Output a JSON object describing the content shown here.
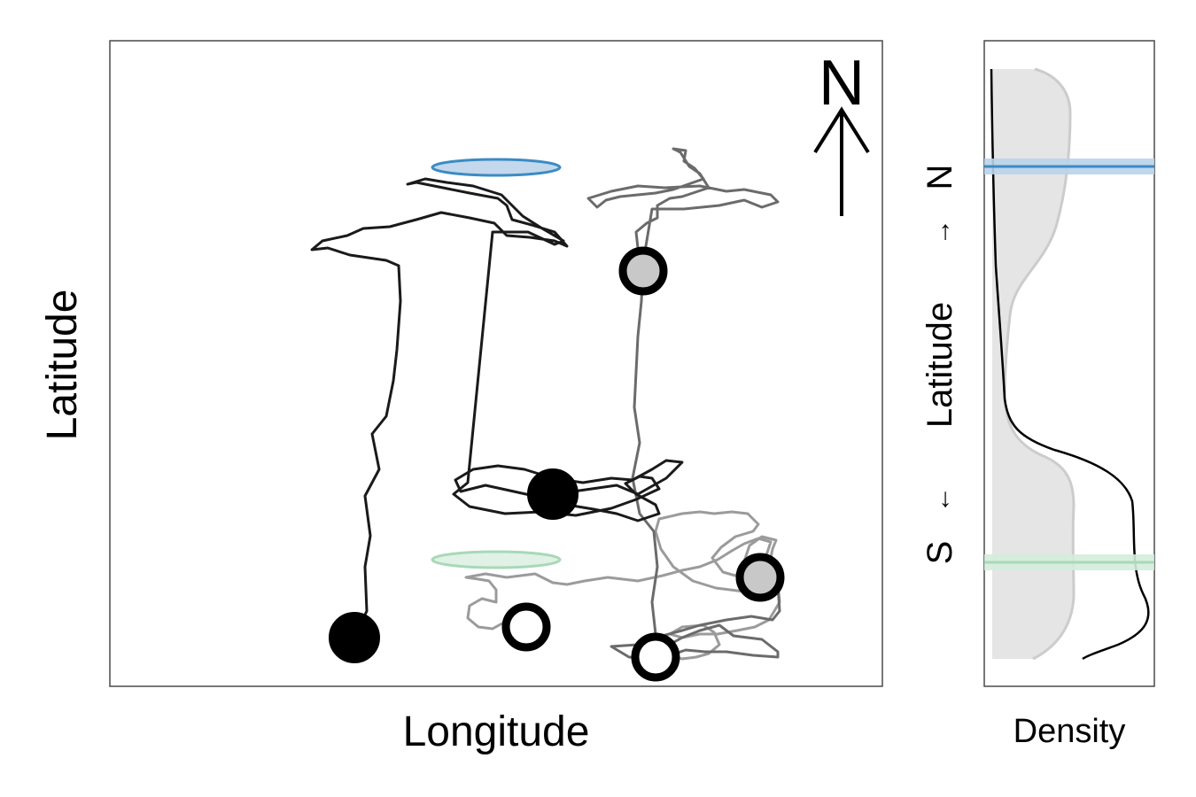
{
  "chart_data": [
    {
      "type": "line",
      "xlabel": "Longitude",
      "ylabel": "Latitude",
      "north_arrow_label": "N",
      "axis_ticks": "none",
      "grid": false,
      "legend": "none",
      "reference_ellipses": [
        {
          "name": "north",
          "color": "#3b8bc4",
          "fill": "#c3d8ec"
        },
        {
          "name": "south",
          "color": "#a9d8b8",
          "fill": "#e0f1e5"
        }
      ],
      "tracks": [
        {
          "color": "#1a1a1a",
          "start": "filled-black",
          "end": "filled-black",
          "points": [
            [
              400,
              720
            ],
            [
              414,
              690
            ],
            [
              412,
              640
            ],
            [
              418,
              605
            ],
            [
              412,
              560
            ],
            [
              428,
              530
            ],
            [
              420,
              490
            ],
            [
              436,
              470
            ],
            [
              444,
              430
            ],
            [
              448,
              395
            ],
            [
              452,
              340
            ],
            [
              450,
              300
            ],
            [
              436,
              294
            ],
            [
              395,
              288
            ],
            [
              370,
              280
            ],
            [
              352,
              282
            ],
            [
              364,
              272
            ],
            [
              392,
              266
            ],
            [
              410,
              258
            ],
            [
              440,
              256
            ],
            [
              470,
              248
            ],
            [
              498,
              240
            ],
            [
              530,
              246
            ],
            [
              558,
              252
            ],
            [
              572,
              266
            ],
            [
              598,
              268
            ],
            [
              626,
              272
            ],
            [
              640,
              278
            ],
            [
              626,
              262
            ],
            [
              600,
              254
            ],
            [
              578,
              248
            ],
            [
              572,
              232
            ],
            [
              562,
              224
            ],
            [
              530,
              218
            ],
            [
              500,
              212
            ],
            [
              470,
              206
            ],
            [
              460,
              208
            ],
            [
              480,
              202
            ],
            [
              504,
              206
            ],
            [
              534,
              210
            ],
            [
              566,
              220
            ],
            [
              576,
              230
            ],
            [
              590,
              244
            ],
            [
              612,
              258
            ],
            [
              636,
              272
            ],
            [
              626,
              276
            ],
            [
              596,
              262
            ],
            [
              556,
              262
            ],
            [
              528,
              545
            ],
            [
              512,
              558
            ],
            [
              530,
              572
            ],
            [
              570,
              580
            ],
            [
              610,
              578
            ],
            [
              650,
              582
            ],
            [
              690,
              574
            ],
            [
              718,
              564
            ],
            [
              744,
              552
            ],
            [
              736,
              540
            ],
            [
              722,
              538
            ],
            [
              706,
              546
            ],
            [
              718,
              558
            ],
            [
              740,
              570
            ],
            [
              744,
              580
            ],
            [
              720,
              588
            ],
            [
              696,
              580
            ],
            [
              670,
              575
            ],
            [
              640,
              570
            ],
            [
              612,
              562
            ],
            [
              580,
              555
            ],
            [
              548,
              548
            ],
            [
              520,
              555
            ],
            [
              514,
              542
            ],
            [
              534,
              530
            ],
            [
              562,
              526
            ],
            [
              592,
              530
            ],
            [
              624,
              540
            ],
            [
              658,
              545
            ],
            [
              690,
              540
            ],
            [
              714,
              542
            ],
            [
              736,
              530
            ],
            [
              752,
              520
            ],
            [
              770,
              522
            ],
            [
              752,
              540
            ],
            [
              720,
              558
            ],
            [
              696,
              548
            ],
            [
              668,
              552
            ],
            [
              640,
              556
            ],
            [
              624,
              558
            ]
          ]
        },
        {
          "color": "#6b6b6b",
          "start": "filled-gray",
          "end": "filled-gray",
          "points": [
            [
              726,
              306
            ],
            [
              720,
              280
            ],
            [
              718,
              262
            ],
            [
              730,
              252
            ],
            [
              742,
              246
            ],
            [
              742,
              232
            ],
            [
              756,
              224
            ],
            [
              770,
              222
            ],
            [
              800,
              212
            ],
            [
              790,
              196
            ],
            [
              778,
              188
            ],
            [
              768,
              172
            ],
            [
              760,
              168
            ],
            [
              774,
              170
            ],
            [
              772,
              182
            ],
            [
              784,
              190
            ],
            [
              794,
              202
            ],
            [
              760,
              214
            ],
            [
              740,
              218
            ],
            [
              700,
              222
            ],
            [
              684,
              226
            ],
            [
              674,
              234
            ],
            [
              664,
              224
            ],
            [
              690,
              216
            ],
            [
              720,
              210
            ],
            [
              750,
              212
            ],
            [
              790,
              210
            ],
            [
              820,
              216
            ],
            [
              840,
              214
            ],
            [
              870,
              220
            ],
            [
              878,
              228
            ],
            [
              860,
              234
            ],
            [
              840,
              226
            ],
            [
              812,
              232
            ],
            [
              772,
              236
            ],
            [
              736,
              236
            ],
            [
              726,
              296
            ],
            [
              724,
              340
            ],
            [
              720,
              380
            ],
            [
              718,
              420
            ],
            [
              716,
              460
            ],
            [
              722,
              500
            ],
            [
              714,
              540
            ],
            [
              722,
              580
            ],
            [
              738,
              600
            ],
            [
              742,
              640
            ],
            [
              736,
              680
            ],
            [
              740,
              716
            ],
            [
              738,
              740
            ],
            [
              752,
              730
            ],
            [
              770,
              720
            ],
            [
              790,
              712
            ],
            [
              812,
              706
            ],
            [
              828,
              718
            ],
            [
              860,
              722
            ],
            [
              878,
              736
            ],
            [
              878,
              742
            ],
            [
              850,
              740
            ],
            [
              820,
              736
            ],
            [
              796,
              736
            ],
            [
              774,
              734
            ],
            [
              756,
              740
            ],
            [
              740,
              744
            ],
            [
              710,
              742
            ],
            [
              690,
              730
            ],
            [
              720,
              728
            ],
            [
              740,
              720
            ],
            [
              770,
              712
            ],
            [
              790,
              706
            ],
            [
              820,
              700
            ],
            [
              848,
              696
            ],
            [
              872,
              700
            ],
            [
              880,
              690
            ],
            [
              878,
              660
            ],
            [
              858,
              652
            ]
          ]
        },
        {
          "color": "#9b9b9b",
          "start": "open-white",
          "end": "open-white",
          "points": [
            [
              594,
              708
            ],
            [
              574,
              700
            ],
            [
              556,
              710
            ],
            [
              540,
              708
            ],
            [
              528,
              698
            ],
            [
              530,
              684
            ],
            [
              544,
              676
            ],
            [
              560,
              680
            ],
            [
              560,
              666
            ],
            [
              552,
              656
            ],
            [
              540,
              654
            ],
            [
              526,
              652
            ],
            [
              548,
              648
            ],
            [
              572,
              652
            ],
            [
              604,
              648
            ],
            [
              624,
              658
            ],
            [
              640,
              660
            ],
            [
              660,
              656
            ],
            [
              686,
              652
            ],
            [
              720,
              656
            ],
            [
              748,
              650
            ],
            [
              770,
              644
            ],
            [
              790,
              640
            ],
            [
              810,
              632
            ],
            [
              826,
              622
            ],
            [
              840,
              614
            ],
            [
              856,
              608
            ],
            [
              870,
              612
            ],
            [
              864,
              630
            ],
            [
              850,
              640
            ],
            [
              830,
              650
            ],
            [
              816,
              646
            ],
            [
              804,
              630
            ],
            [
              814,
              618
            ],
            [
              830,
              606
            ],
            [
              850,
              600
            ],
            [
              856,
              592
            ],
            [
              844,
              580
            ],
            [
              826,
              578
            ],
            [
              806,
              580
            ],
            [
              790,
              578
            ],
            [
              770,
              580
            ],
            [
              744,
              586
            ],
            [
              740,
              600
            ],
            [
              746,
              620
            ],
            [
              760,
              640
            ],
            [
              782,
              656
            ],
            [
              808,
              664
            ],
            [
              840,
              668
            ],
            [
              856,
              656
            ],
            [
              868,
              640
            ],
            [
              872,
              620
            ],
            [
              876,
              610
            ],
            [
              860,
              606
            ],
            [
              846,
              616
            ],
            [
              840,
              634
            ],
            [
              852,
              644
            ],
            [
              864,
              652
            ],
            [
              878,
              660
            ],
            [
              880,
              680
            ],
            [
              868,
              700
            ],
            [
              852,
              708
            ],
            [
              832,
              712
            ],
            [
              810,
              716
            ],
            [
              790,
              716
            ],
            [
              770,
              720
            ],
            [
              756,
              716
            ],
            [
              770,
              708
            ],
            [
              794,
              706
            ],
            [
              806,
              714
            ],
            [
              812,
              728
            ],
            [
              800,
              738
            ],
            [
              786,
              742
            ],
            [
              770,
              744
            ],
            [
              752,
              740
            ],
            [
              740,
              732
            ],
            [
              740,
              742
            ]
          ]
        }
      ],
      "markers": {
        "filled-black": {
          "fill": "#000000",
          "stroke": "#000000"
        },
        "filled-gray": {
          "fill": "#c8c8c8",
          "stroke": "#000000"
        },
        "open-white": {
          "fill": "#ffffff",
          "stroke": "#000000"
        }
      }
    },
    {
      "type": "area",
      "orientation": "vertical-density",
      "xlabel": "Density",
      "ylabel_parts": [
        "S",
        "←",
        "Latitude",
        "→",
        "N"
      ],
      "reference_lines": [
        {
          "name": "north",
          "color": "#3b8bc4",
          "band": "#b9d3ea"
        },
        {
          "name": "south",
          "color": "#a9d8b8",
          "band": "#d4ecdc"
        }
      ],
      "series": [
        {
          "name": "",
          "style": "gray-filled",
          "color": "#cccccc",
          "fill": "#e5e5e5"
        },
        {
          "name": "",
          "style": "black-line",
          "color": "#000000"
        }
      ]
    }
  ]
}
